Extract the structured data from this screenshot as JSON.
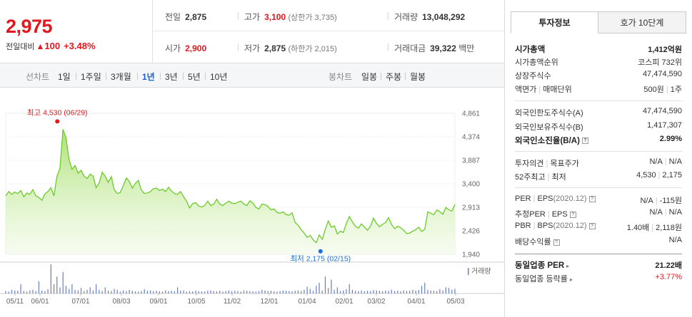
{
  "price": {
    "current": "2,975",
    "change_label": "전일대비",
    "change_arrow": "▲",
    "change_amount": "100",
    "change_pct": "+3.48%"
  },
  "stats": {
    "prev_close_label": "전일",
    "prev_close": "2,875",
    "high_label": "고가",
    "high": "3,100",
    "upper_limit": "(상한가 3,735)",
    "volume_label": "거래량",
    "volume": "13,048,292",
    "open_label": "시가",
    "open": "2,900",
    "low_label": "저가",
    "low": "2,875",
    "lower_limit": "(하한가 2,015)",
    "amount_label": "거래대금",
    "amount": "39,322",
    "amount_unit": "백만"
  },
  "tabs": {
    "line_label": "선차트",
    "periods": [
      "1일",
      "1주일",
      "3개월",
      "1년",
      "3년",
      "5년",
      "10년"
    ],
    "active_period": "1년",
    "candle_label": "봉차트",
    "candles": [
      "일봉",
      "주봉",
      "월봉"
    ]
  },
  "chart_data": {
    "type": "area",
    "accent_color": "#6ccb2a",
    "y_ticks": [
      "4,861",
      "4,374",
      "3,887",
      "3,400",
      "2,913",
      "2,426",
      "1,940"
    ],
    "ylim": [
      1940,
      4861
    ],
    "x_ticks": [
      "05/11",
      "06/01",
      "07/01",
      "08/03",
      "09/01",
      "10/05",
      "11/02",
      "12/01",
      "01/04",
      "02/01",
      "03/02",
      "04/01",
      "05/03"
    ],
    "high_annotation": "최고 4,530 (06/29)",
    "low_annotation": "최저 2,175 (02/15)",
    "volume_label": "거래량",
    "values": [
      3150,
      3240,
      3180,
      3230,
      3200,
      3260,
      3130,
      3210,
      3180,
      3280,
      3150,
      3120,
      3060,
      3190,
      3240,
      3320,
      3150,
      3560,
      3720,
      4530,
      4350,
      3900,
      3700,
      3780,
      3620,
      3680,
      3560,
      3510,
      3600,
      3560,
      3320,
      3420,
      3640,
      3560,
      3430,
      3550,
      3280,
      3200,
      3220,
      3360,
      3520,
      3450,
      3310,
      3410,
      3470,
      3270,
      3200,
      3210,
      3240,
      3300,
      3310,
      3260,
      3290,
      3240,
      3330,
      3250,
      3200,
      3180,
      3240,
      3130,
      3040,
      2900,
      2990,
      3010,
      2940,
      2920,
      2950,
      3040,
      2950,
      2980,
      3080,
      2980,
      2950,
      3000,
      3040,
      3000,
      2990,
      3020,
      3040,
      2980,
      2950,
      3050,
      3000,
      2910,
      2880,
      2980,
      2970,
      2930,
      2860,
      2880,
      2810,
      2790,
      2820,
      2760,
      2750,
      2800,
      2600,
      2540,
      2450,
      2380,
      2290,
      2330,
      2240,
      2180,
      2340,
      2250,
      2460,
      2630,
      2500,
      2530,
      2360,
      2420,
      2390,
      2580,
      2720,
      2610,
      2520,
      2480,
      2570,
      2500,
      2440,
      2520,
      2690,
      2580,
      2510,
      2560,
      2600,
      2700,
      2560,
      2470,
      2520,
      2490,
      2440,
      2370,
      2380,
      2420,
      2450,
      2500,
      2410,
      2460,
      2820,
      2790,
      2760,
      2860,
      2820,
      2770,
      2910,
      2860,
      2835,
      2975
    ],
    "volumes": [
      8,
      6,
      12,
      10,
      9,
      30,
      8,
      6,
      10,
      12,
      8,
      40,
      10,
      8,
      14,
      95,
      30,
      55,
      20,
      70,
      25,
      15,
      30,
      12,
      10,
      18,
      8,
      12,
      20,
      10,
      30,
      12,
      8,
      20,
      10,
      8,
      15,
      12,
      6,
      10,
      8,
      12,
      9,
      7,
      6,
      8,
      14,
      9,
      10,
      8,
      9,
      7,
      6,
      10,
      8,
      9,
      7,
      20,
      9,
      10,
      6,
      8,
      7,
      9,
      8,
      7,
      6,
      9,
      10,
      8,
      7,
      9,
      6,
      8,
      10,
      7,
      9,
      8,
      6,
      10,
      9,
      8,
      7,
      6,
      8,
      12,
      10,
      8,
      9,
      7,
      6,
      8,
      10,
      9,
      8,
      7,
      9,
      10,
      8,
      12,
      22,
      15,
      9,
      25,
      35,
      10,
      55,
      18,
      45,
      12,
      20,
      8,
      10,
      14,
      30,
      12,
      9,
      8,
      10,
      7,
      9,
      8,
      11,
      10,
      9,
      8,
      10,
      9,
      12,
      8,
      9,
      7,
      10,
      8,
      9,
      12,
      10,
      11,
      25,
      35,
      12,
      10,
      9,
      8,
      14,
      10,
      20,
      18,
      12,
      15
    ]
  },
  "right_panel": {
    "tab_active": "투자정보",
    "tab_other": "호가 10단계",
    "market_cap_label": "시가총액",
    "market_cap": "1,412억원",
    "market_cap_rank_label": "시가총액순위",
    "market_cap_rank": "코스피 732위",
    "listed_shares_label": "상장주식수",
    "listed_shares": "47,474,590",
    "par_value_label": "액면가",
    "trade_unit_label": "매매단위",
    "par_value": "500원",
    "trade_unit": "1주",
    "foreign_limit_label": "외국인한도주식수(A)",
    "foreign_limit": "47,474,590",
    "foreign_hold_label": "외국인보유주식수(B)",
    "foreign_hold": "1,417,307",
    "foreign_ratio_label": "외국인소진율(B/A)",
    "foreign_ratio": "2.99%",
    "opinion_label": "투자의견",
    "target_label": "목표주가",
    "opinion": "N/A",
    "target": "N/A",
    "week52_high_label": "52주최고",
    "week52_low_label": "최저",
    "week52_high": "4,530",
    "week52_low": "2,175",
    "per_label": "PER",
    "eps_label": "EPS",
    "eps_date": "(2020.12)",
    "per": "N/A",
    "eps": "-115원",
    "est_per_label": "추정PER",
    "est_eps_label": "EPS",
    "est_per": "N/A",
    "est_eps": "N/A",
    "pbr_label": "PBR",
    "bps_label": "BPS",
    "bps_date": "(2020.12)",
    "pbr": "1.40배",
    "bps": "2,118원",
    "dividend_label": "배당수익률",
    "dividend": "N/A",
    "sector_per_label": "동일업종 PER",
    "sector_per": "21.22배",
    "sector_rate_label": "동일업종 등락률",
    "sector_rate": "+3.77%"
  }
}
